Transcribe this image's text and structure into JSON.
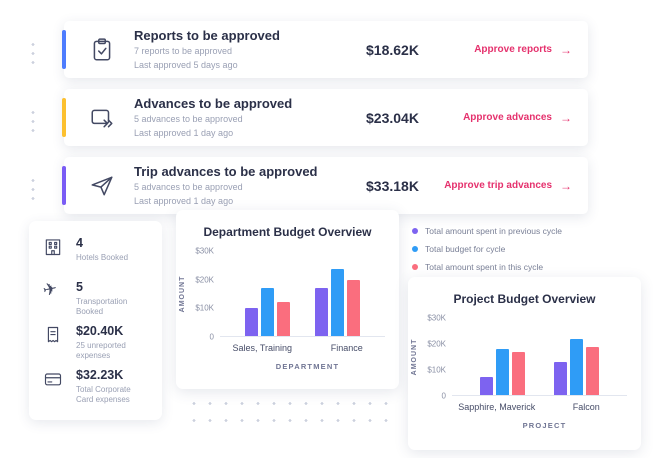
{
  "approval_cards": [
    {
      "title": "Reports to be approved",
      "subtitle": "7 reports to be approved",
      "last_line": "Last approved 5 days ago",
      "amount": "$18.62K",
      "action_label": "Approve reports",
      "action_arrow": "→",
      "accent_color": "#4d7cfe"
    },
    {
      "title": "Advances to be approved",
      "subtitle": "5 advances to be approved",
      "last_line": "Last approved 1 day ago",
      "amount": "$23.04K",
      "action_label": "Approve advances",
      "action_arrow": "→",
      "accent_color": "#fcc02f"
    },
    {
      "title": "Trip advances to be approved",
      "subtitle": "5 advances to be approved",
      "last_line": "Last approved 1 day ago",
      "amount": "$33.18K",
      "action_label": "Approve trip advances",
      "action_arrow": "→",
      "accent_color": "#7a5cf5"
    }
  ],
  "stats": [
    {
      "value": "4",
      "label": "Hotels Booked"
    },
    {
      "value": "5",
      "label": "Transportation Booked"
    },
    {
      "value": "$20.40K",
      "label": "25 unreported expenses"
    },
    {
      "value": "$32.23K",
      "label": "Total Corporate Card expenses"
    }
  ],
  "plane_glyph": "✈",
  "chart_data": [
    {
      "type": "bar",
      "title": "Department Budget Overview",
      "xlabel": "DEPARTMENT",
      "ylabel": "AMOUNT",
      "ylim": [
        0,
        30
      ],
      "yticks": [
        "$30K",
        "$20K",
        "$10K",
        "0"
      ],
      "categories": [
        "Sales, Training",
        "Finance"
      ],
      "legend_position": "top-right",
      "grid": false,
      "series": [
        {
          "name": "Total amount spent in previous cycle",
          "color": "#7d63f0",
          "values": [
            10,
            17
          ]
        },
        {
          "name": "Total budget for cycle",
          "color": "#2f9cf6",
          "values": [
            17,
            24
          ]
        },
        {
          "name": "Total amount spent in this cycle",
          "color": "#fa6e7e",
          "values": [
            12,
            20
          ]
        }
      ]
    },
    {
      "type": "bar",
      "title": "Project Budget Overview",
      "xlabel": "PROJECT",
      "ylabel": "AMOUNT",
      "ylim": [
        0,
        30
      ],
      "yticks": [
        "$30K",
        "$20K",
        "$10K",
        "0"
      ],
      "categories": [
        "Sapphire, Maverick",
        "Falcon"
      ],
      "grid": false,
      "series": [
        {
          "name": "Total amount spent in previous cycle",
          "color": "#7d63f0",
          "values": [
            7,
            13
          ]
        },
        {
          "name": "Total budget for cycle",
          "color": "#2f9cf6",
          "values": [
            18,
            22
          ]
        },
        {
          "name": "Total amount spent in this cycle",
          "color": "#fa6e7e",
          "values": [
            17,
            19
          ]
        }
      ]
    }
  ]
}
